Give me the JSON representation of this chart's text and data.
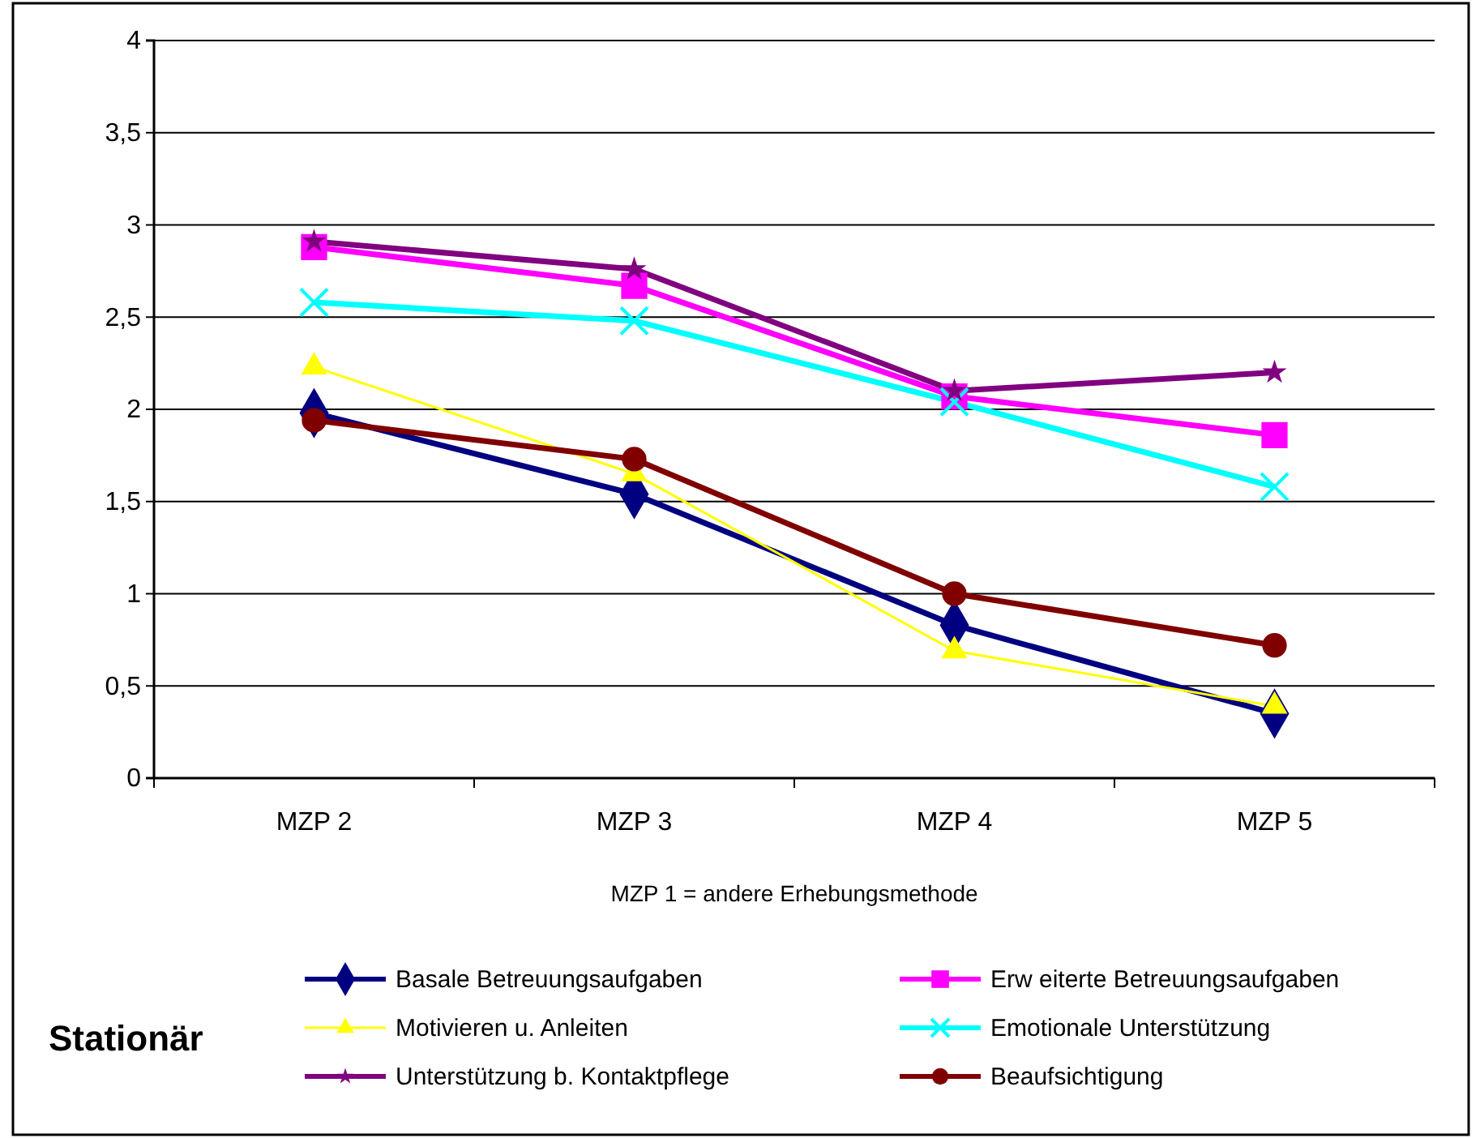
{
  "chart_data": {
    "type": "line",
    "title": "Stationär",
    "xlabel": "MZP 1 = andere Erhebungsmethode",
    "categories": [
      "MZP 2",
      "MZP 3",
      "MZP 4",
      "MZP 5"
    ],
    "ylim": [
      0,
      4
    ],
    "yticks": [
      0,
      {
        "value": 0.5,
        "label": "0,5"
      },
      1,
      {
        "value": 1.5,
        "label": "1,5"
      },
      2,
      {
        "value": 2.5,
        "label": "2,5"
      },
      3,
      {
        "value": 3.5,
        "label": "3,5"
      },
      4
    ],
    "grid": "y",
    "legend": "bottom",
    "line_style": "solid",
    "series": [
      {
        "name": "Basale Betreuungsaufgaben",
        "color": "#000080",
        "marker": "diamond",
        "values": [
          1.98,
          1.54,
          0.83,
          0.35
        ]
      },
      {
        "name": "Erw eiterte Betreuungsaufgaben",
        "color": "#ff00ff",
        "marker": "square",
        "values": [
          2.88,
          2.67,
          2.07,
          1.86
        ]
      },
      {
        "name": "Motivieren u. Anleiten",
        "color": "#ffff00",
        "marker": "triangle",
        "values": [
          2.23,
          1.65,
          0.69,
          0.39
        ]
      },
      {
        "name": "Emotionale Unterstützung",
        "color": "#00ffff",
        "marker": "cross",
        "values": [
          2.58,
          2.48,
          2.04,
          1.58
        ]
      },
      {
        "name": "Unterstützung b. Kontaktpflege",
        "color": "#800080",
        "marker": "star",
        "values": [
          2.91,
          2.76,
          2.1,
          2.2
        ]
      },
      {
        "name": "Beaufsichtigung",
        "color": "#800000",
        "marker": "circle",
        "values": [
          1.94,
          1.73,
          1,
          0.72
        ]
      }
    ]
  }
}
